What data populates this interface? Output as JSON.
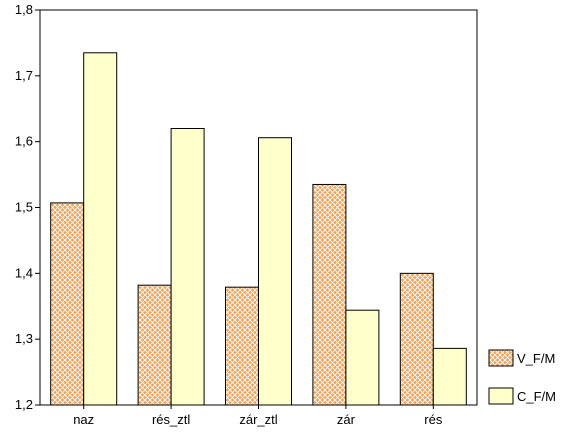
{
  "chart_data": {
    "type": "bar",
    "categories": [
      "naz",
      "rés_ztl",
      "zár_ztl",
      "zár",
      "rés"
    ],
    "series": [
      {
        "name": "V_F/M",
        "values": [
          1.507,
          1.382,
          1.379,
          1.535,
          1.4
        ],
        "color": "#f0a25a",
        "pattern": "crosshatch"
      },
      {
        "name": "C_F/M",
        "values": [
          1.735,
          1.62,
          1.606,
          1.344,
          1.286
        ],
        "color": "#ffffcc",
        "pattern": "solid"
      }
    ],
    "ylim": [
      1.2,
      1.8
    ],
    "yticks": [
      "1,2",
      "1,3",
      "1,4",
      "1,5",
      "1,6",
      "1,7",
      "1,8"
    ],
    "title": "",
    "xlabel": "",
    "ylabel": "",
    "grid": false,
    "legend_placement": "right"
  }
}
